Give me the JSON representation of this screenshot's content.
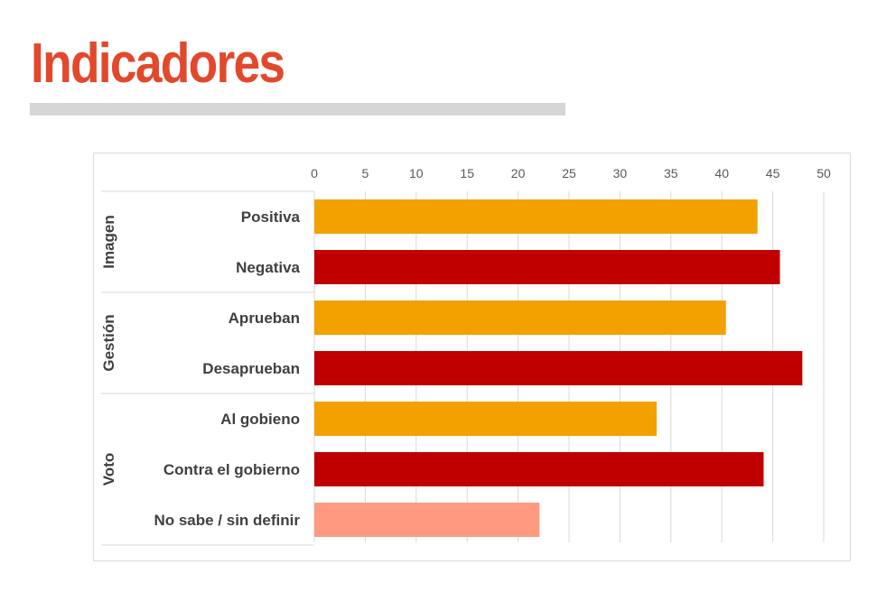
{
  "page": {
    "title": "Indicadores"
  },
  "colors": {
    "title": "#e2492c",
    "rule": "#d6d6d6",
    "positive": "#f2a100",
    "negative": "#c00000",
    "undefined": "#ff9980",
    "grid": "#d9d9d9"
  },
  "chart_data": {
    "type": "bar",
    "orientation": "horizontal",
    "title": "",
    "xlabel": "",
    "ylabel": "",
    "xlim": [
      0,
      50
    ],
    "ticks": [
      0,
      5,
      10,
      15,
      20,
      25,
      30,
      35,
      40,
      45,
      50
    ],
    "grid": true,
    "axis_position": "top",
    "groups": [
      {
        "name": "Imagen",
        "items": [
          {
            "label": "Positiva",
            "value": 43.5,
            "color": "#f2a100"
          },
          {
            "label": "Negativa",
            "value": 45.7,
            "color": "#c00000"
          }
        ]
      },
      {
        "name": "Gestión",
        "items": [
          {
            "label": "Aprueban",
            "value": 40.4,
            "color": "#f2a100"
          },
          {
            "label": "Desaprueban",
            "value": 47.9,
            "color": "#c00000"
          }
        ]
      },
      {
        "name": "Voto",
        "items": [
          {
            "label": "Al gobieno",
            "value": 33.6,
            "color": "#f2a100"
          },
          {
            "label": "Contra el gobierno",
            "value": 44.1,
            "color": "#c00000"
          },
          {
            "label": "No sabe / sin definir",
            "value": 22.1,
            "color": "#ff9980"
          }
        ]
      }
    ]
  }
}
